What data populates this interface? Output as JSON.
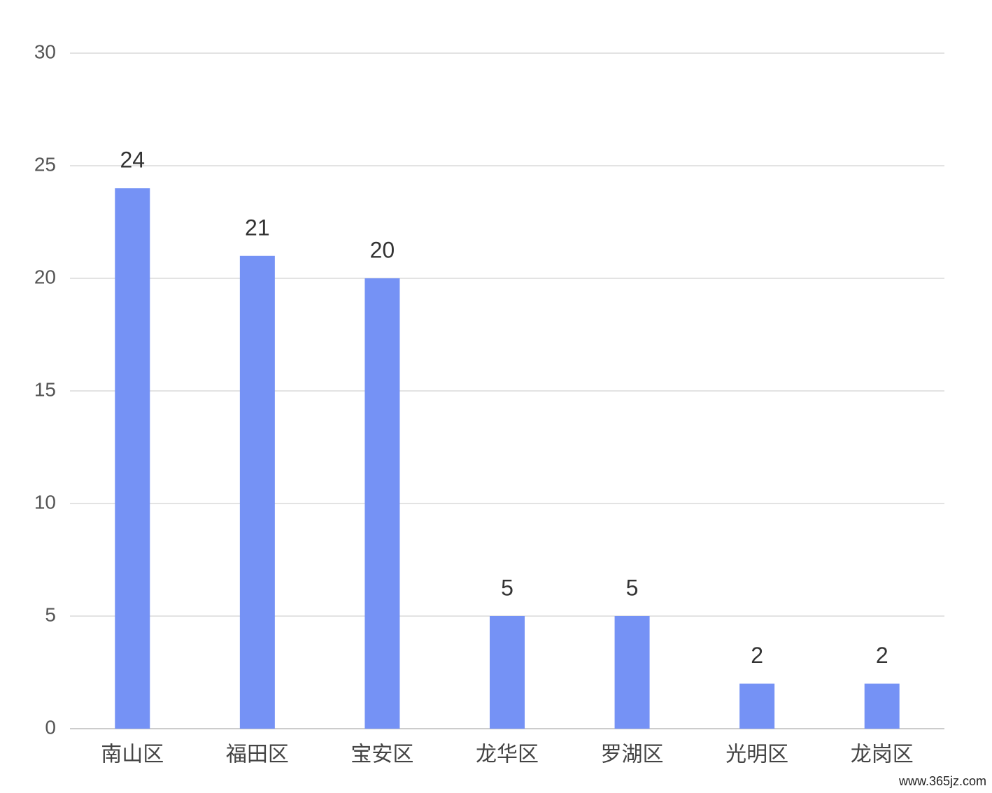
{
  "chart_data": {
    "type": "bar",
    "categories": [
      "南山区",
      "福田区",
      "宝安区",
      "龙华区",
      "罗湖区",
      "光明区",
      "龙岗区"
    ],
    "values": [
      24,
      21,
      20,
      5,
      5,
      2,
      2
    ],
    "color": "#7592f5",
    "ylim": [
      0,
      30
    ],
    "yticks": [
      0,
      5,
      10,
      15,
      20,
      25,
      30
    ],
    "grid": true,
    "watermark": "www.365jz.com"
  }
}
